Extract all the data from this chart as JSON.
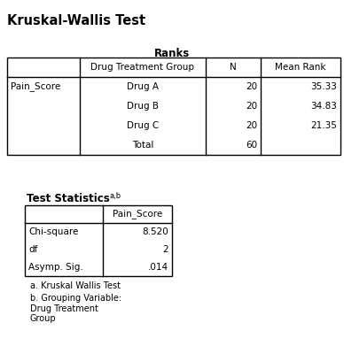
{
  "main_title": "Kruskal-Wallis Test",
  "ranks_title": "Ranks",
  "ranks_col_headers": [
    "",
    "Drug Treatment Group",
    "N",
    "Mean Rank"
  ],
  "ranks_rows": [
    [
      "Pain_Score",
      "Drug A",
      "20",
      "35.33"
    ],
    [
      "",
      "Drug B",
      "20",
      "34.83"
    ],
    [
      "",
      "Drug C",
      "20",
      "21.35"
    ],
    [
      "",
      "Total",
      "60",
      ""
    ]
  ],
  "stats_title": "Test Statistics",
  "stats_superscript": "a,b",
  "stats_col_headers": [
    "",
    "Pain_Score"
  ],
  "stats_rows": [
    [
      "Chi-square",
      "8.520"
    ],
    [
      "df",
      "2"
    ],
    [
      "Asymp. Sig.",
      ".014"
    ]
  ],
  "footnote_a": "a. Kruskal Wallis Test",
  "footnote_b": "b. Grouping Variable:\nDrug Treatment\nGroup",
  "bg_color": "#ffffff",
  "text_color": "#000000",
  "border_color": "#000000",
  "font_size": 7.5,
  "title_font_size": 10.5
}
